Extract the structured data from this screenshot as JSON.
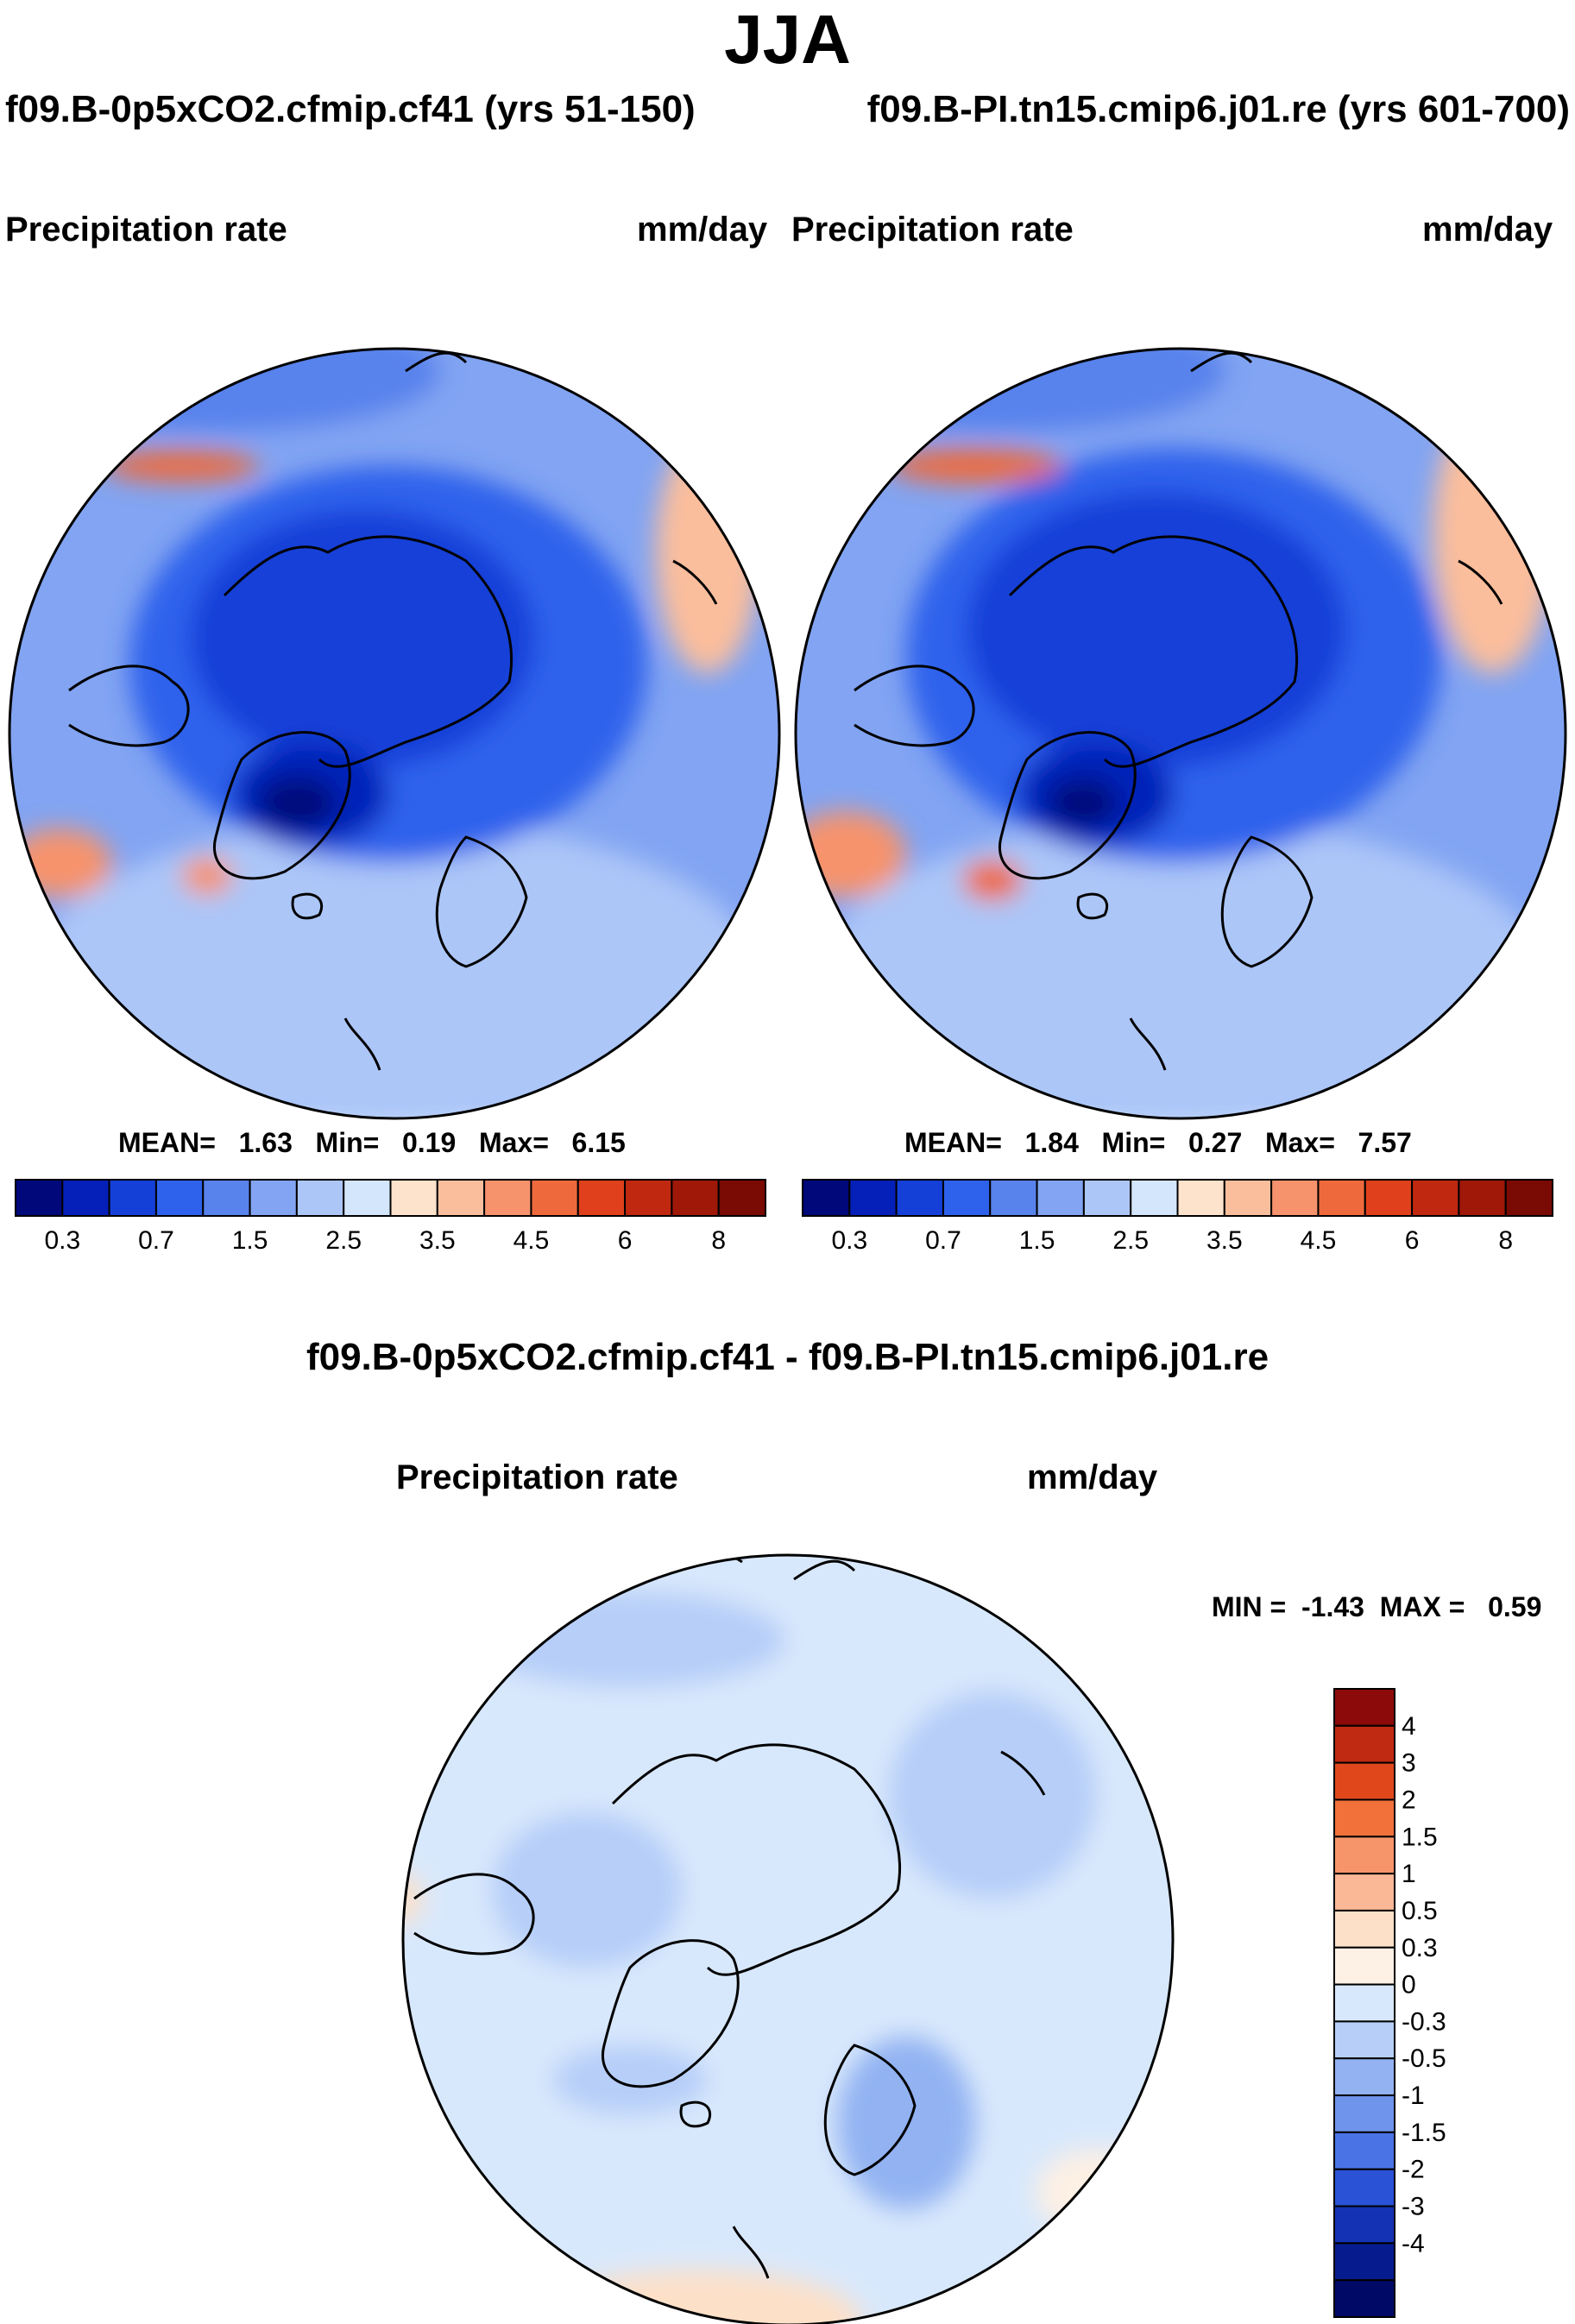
{
  "title": "JJA",
  "case_a": "f09.B-0p5xCO2.cfmip.cf41 (yrs 51-150)",
  "case_b": "f09.B-PI.tn15.cmip6.j01.re (yrs 601-700)",
  "diff_title": "f09.B-0p5xCO2.cfmip.cf41 - f09.B-PI.tn15.cmip6.j01.re",
  "variable": "Precipitation rate",
  "units": "mm/day",
  "panels": {
    "left": {
      "mean_label": "MEAN=",
      "mean": "1.63",
      "min_label": "Min=",
      "min": "0.19",
      "max_label": "Max=",
      "max": "6.15"
    },
    "right": {
      "mean_label": "MEAN=",
      "mean": "1.84",
      "min_label": "Min=",
      "min": "0.27",
      "max_label": "Max=",
      "max": "7.57"
    },
    "diff": {
      "min_label": "MIN =",
      "min": "-1.43",
      "max_label": "MAX =",
      "max": "0.59"
    }
  },
  "chart_data": [
    {
      "type": "heatmap",
      "projection": "north-polar-stereographic",
      "title": "f09.B-0p5xCO2.cfmip.cf41 (yrs 51-150)",
      "variable": "Precipitation rate",
      "units": "mm/day",
      "mean": 1.63,
      "min": 0.19,
      "max": 6.15,
      "colorbar": {
        "levels": [
          0.2,
          0.3,
          0.5,
          0.7,
          1,
          1.5,
          2,
          2.5,
          3,
          3.5,
          4,
          4.5,
          5,
          6,
          7,
          8
        ],
        "tick_labels": [
          "0.3",
          "0.7",
          "1.5",
          "2.5",
          "3.5",
          "4.5",
          "6",
          "8"
        ],
        "colors": [
          "#00087a",
          "#0420b8",
          "#1440d8",
          "#2e62ec",
          "#5882ec",
          "#82a4f2",
          "#acc6f8",
          "#d4e6fc",
          "#fde2cc",
          "#fbbe9c",
          "#f6936c",
          "#ee6a3c",
          "#e0401c",
          "#c02810",
          "#a01808",
          "#7a0a04"
        ]
      }
    },
    {
      "type": "heatmap",
      "projection": "north-polar-stereographic",
      "title": "f09.B-PI.tn15.cmip6.j01.re (yrs 601-700)",
      "variable": "Precipitation rate",
      "units": "mm/day",
      "mean": 1.84,
      "min": 0.27,
      "max": 7.57,
      "colorbar": {
        "levels": [
          0.2,
          0.3,
          0.5,
          0.7,
          1,
          1.5,
          2,
          2.5,
          3,
          3.5,
          4,
          4.5,
          5,
          6,
          7,
          8
        ],
        "tick_labels": [
          "0.3",
          "0.7",
          "1.5",
          "2.5",
          "3.5",
          "4.5",
          "6",
          "8"
        ],
        "colors": [
          "#00087a",
          "#0420b8",
          "#1440d8",
          "#2e62ec",
          "#5882ec",
          "#82a4f2",
          "#acc6f8",
          "#d4e6fc",
          "#fde2cc",
          "#fbbe9c",
          "#f6936c",
          "#ee6a3c",
          "#e0401c",
          "#c02810",
          "#a01808",
          "#7a0a04"
        ]
      }
    },
    {
      "type": "heatmap",
      "projection": "north-polar-stereographic",
      "title": "f09.B-0p5xCO2.cfmip.cf41 - f09.B-PI.tn15.cmip6.j01.re",
      "variable": "Precipitation rate",
      "units": "mm/day",
      "min": -1.43,
      "max": 0.59,
      "colorbar": {
        "orientation": "vertical",
        "tick_labels": [
          "4",
          "3",
          "2",
          "1.5",
          "1",
          "0.5",
          "0.3",
          "0",
          "-0.3",
          "-0.5",
          "-1",
          "-1.5",
          "-2",
          "-3",
          "-4"
        ],
        "colors": [
          "#8c0a0a",
          "#c02a12",
          "#e0481c",
          "#f2703a",
          "#f7956a",
          "#fab896",
          "#fde0c8",
          "#fdf0e4",
          "#d8e8fc",
          "#b6cef8",
          "#92b2f2",
          "#6e94ec",
          "#4a74e6",
          "#2a52d6",
          "#1432b4",
          "#061c8e",
          "#000a66"
        ]
      }
    }
  ]
}
